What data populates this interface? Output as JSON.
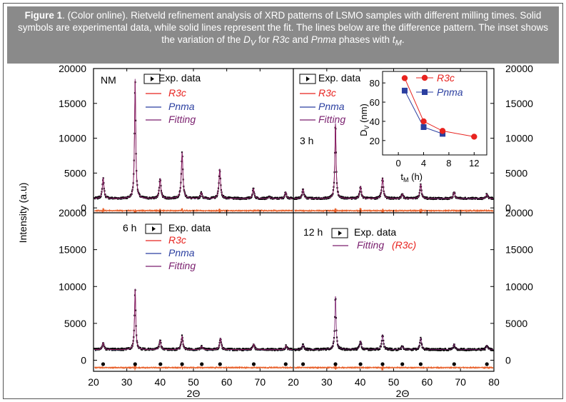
{
  "caption": {
    "label": "Figure 1",
    "text_a": ". (Color online). Rietveld refinement analysis of XRD patterns of LSMO samples with different milling times. Solid symbols are experimental data, while solid lines represent the fit. The lines below are the difference pattern. The inset shows the variation of the ",
    "dv_main": "D",
    "dv_sub": "V",
    "text_b": " for ",
    "phase1": "R3c",
    "text_c": " and ",
    "phase2": "Pnma",
    "text_d": " phases with ",
    "tm_main": "t",
    "tm_sub": "M",
    "text_e": "."
  },
  "axes": {
    "xlabel": "2Θ",
    "ylabel": "Intensity (a.u)",
    "x_ticks": [
      "20",
      "30",
      "40",
      "50",
      "60",
      "70",
      "80"
    ],
    "x_ticks_right": [
      "20",
      "30",
      "40",
      "50",
      "60",
      "70",
      "80"
    ],
    "y_ticks": [
      "0",
      "5000",
      "10000",
      "15000",
      "20000"
    ]
  },
  "legends": {
    "nm": {
      "sample": "NM",
      "exp": "Exp. data",
      "r3c": "R3c",
      "pnma": "Pnma",
      "fit": "Fitting"
    },
    "h3": {
      "sample": "3 h",
      "exp": "Exp. data",
      "r3c": "R3c",
      "pnma": "Pnma",
      "fit": "Fitting"
    },
    "h6": {
      "sample": "6 h",
      "exp": "Exp. data",
      "r3c": "R3c",
      "pnma": "Pnma",
      "fit": "Fitting"
    },
    "h12": {
      "sample": "12 h",
      "exp": "Exp. data",
      "fit": "Fitting",
      "fit_phase": "(R3c)"
    }
  },
  "inset": {
    "xlabel_main": "t",
    "xlabel_sub": "M",
    "xlabel_unit": " (h)",
    "ylabel_main": "D",
    "ylabel_sub": "V",
    "ylabel_unit": " (nm)",
    "x_ticks": [
      "0",
      "4",
      "8",
      "12"
    ],
    "y_ticks": [
      "20",
      "40",
      "60",
      "80"
    ],
    "legend_r3c": "R3c",
    "legend_pnma": "Pnma"
  },
  "colors": {
    "exp": "#000000",
    "r3c": "#e8231f",
    "pnma": "#2b3fa0",
    "fit": "#7a1f6e",
    "diff": "#e8602a",
    "caption_bg": "#8a8a8a"
  },
  "chart_data": [
    {
      "type": "line",
      "panel": "NM",
      "xlim": [
        20,
        80
      ],
      "ylim": [
        -700,
        20000
      ],
      "background": 1350,
      "peaks": [
        {
          "x": 22.9,
          "y": 4300
        },
        {
          "x": 32.5,
          "y": 18500
        },
        {
          "x": 40.0,
          "y": 4200
        },
        {
          "x": 46.6,
          "y": 8000
        },
        {
          "x": 52.4,
          "y": 2200
        },
        {
          "x": 57.9,
          "y": 5600
        },
        {
          "x": 68.0,
          "y": 2800
        },
        {
          "x": 72.8,
          "y": 1600
        },
        {
          "x": 77.7,
          "y": 2300
        }
      ],
      "series": [
        {
          "name": "Exp. data"
        },
        {
          "name": "R3c"
        },
        {
          "name": "Pnma"
        },
        {
          "name": "Fitting"
        }
      ],
      "bragg_marks": []
    },
    {
      "type": "line",
      "panel": "3 h",
      "xlim": [
        20,
        80
      ],
      "ylim": [
        -700,
        20000
      ],
      "background": 1350,
      "peaks": [
        {
          "x": 22.9,
          "y": 2700
        },
        {
          "x": 32.6,
          "y": 12200
        },
        {
          "x": 40.1,
          "y": 3100
        },
        {
          "x": 46.7,
          "y": 4300
        },
        {
          "x": 52.6,
          "y": 2000
        },
        {
          "x": 58.1,
          "y": 3400
        },
        {
          "x": 68.1,
          "y": 2300
        },
        {
          "x": 77.9,
          "y": 2000
        }
      ],
      "series": [
        {
          "name": "Exp. data"
        },
        {
          "name": "R3c"
        },
        {
          "name": "Pnma"
        },
        {
          "name": "Fitting"
        }
      ],
      "bragg_marks": []
    },
    {
      "type": "line",
      "panel": "6 h",
      "xlim": [
        20,
        80
      ],
      "ylim": [
        -1500,
        20000
      ],
      "background": 1450,
      "peaks": [
        {
          "x": 22.9,
          "y": 2400
        },
        {
          "x": 32.5,
          "y": 9700
        },
        {
          "x": 40.0,
          "y": 2700
        },
        {
          "x": 46.6,
          "y": 3300
        },
        {
          "x": 52.5,
          "y": 1900
        },
        {
          "x": 58.1,
          "y": 3000
        },
        {
          "x": 68.1,
          "y": 2200
        },
        {
          "x": 77.8,
          "y": 2000
        }
      ],
      "series": [
        {
          "name": "Exp. data"
        },
        {
          "name": "R3c"
        },
        {
          "name": "Pnma"
        },
        {
          "name": "Fitting"
        }
      ],
      "bragg_marks": [
        22.9,
        32.5,
        40.1,
        46.6,
        52.5,
        58.0,
        68.1,
        77.7
      ]
    },
    {
      "type": "line",
      "panel": "12 h",
      "xlim": [
        20,
        80
      ],
      "ylim": [
        -1500,
        20000
      ],
      "background": 1450,
      "peaks": [
        {
          "x": 22.9,
          "y": 2100
        },
        {
          "x": 32.6,
          "y": 8700
        },
        {
          "x": 40.1,
          "y": 2600
        },
        {
          "x": 46.7,
          "y": 3400
        },
        {
          "x": 52.6,
          "y": 1900
        },
        {
          "x": 58.1,
          "y": 3000
        },
        {
          "x": 68.1,
          "y": 2200
        },
        {
          "x": 77.9,
          "y": 2000
        }
      ],
      "series": [
        {
          "name": "Exp. data"
        },
        {
          "name": "Fitting"
        }
      ],
      "bragg_marks": [
        22.9,
        32.6,
        40.1,
        46.7,
        52.6,
        58.1,
        68.1,
        77.9
      ]
    },
    {
      "type": "line",
      "panel": "inset",
      "xlim": [
        -2.5,
        14
      ],
      "ylim": [
        5,
        92
      ],
      "series": [
        {
          "name": "R3c",
          "x": [
            1,
            4,
            7,
            12
          ],
          "y": [
            85,
            40,
            30,
            24
          ]
        },
        {
          "name": "Pnma",
          "x": [
            1,
            4,
            7
          ],
          "y": [
            72,
            34,
            27
          ]
        }
      ]
    }
  ]
}
